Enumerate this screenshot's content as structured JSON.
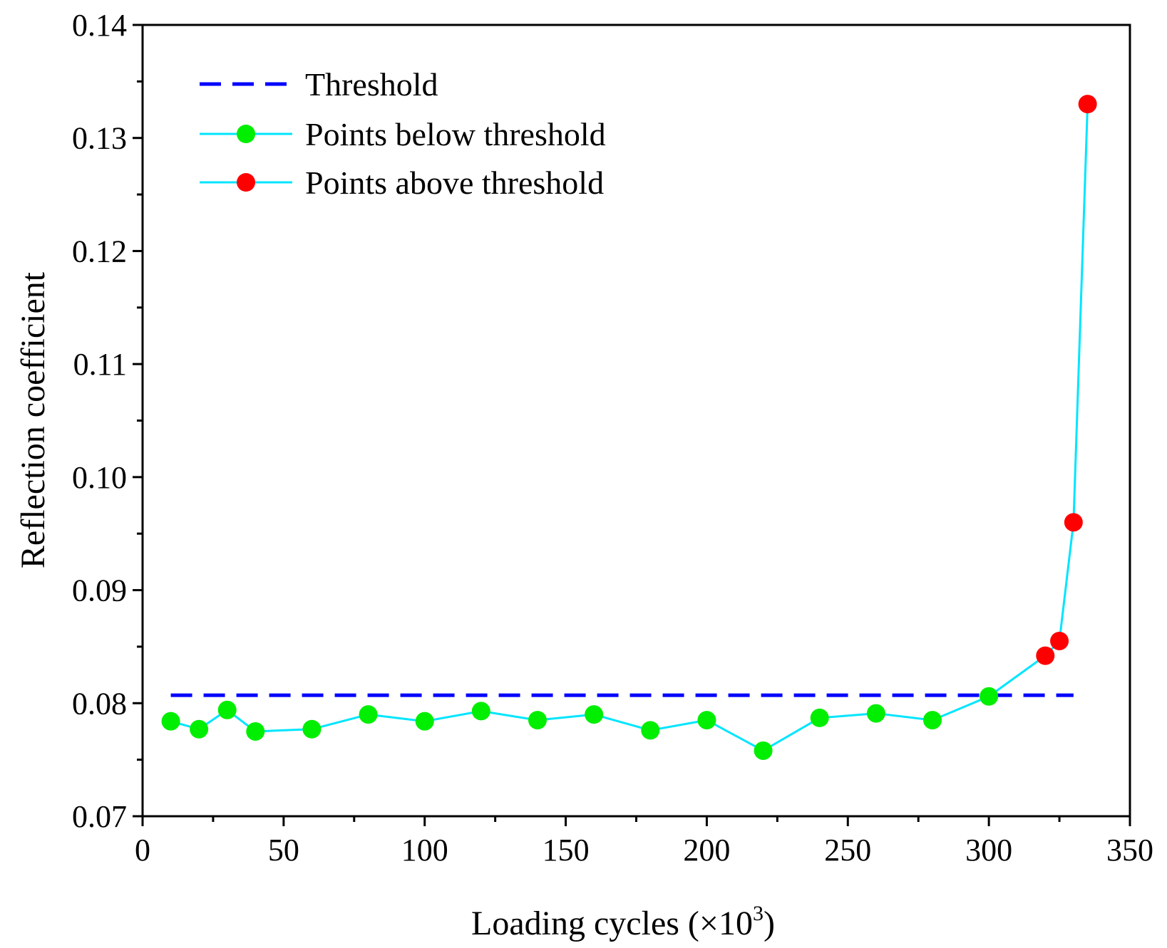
{
  "chart_data": {
    "type": "line",
    "title": "",
    "xlabel_prefix": "Loading cycles (×10",
    "xlabel_exponent": "3",
    "xlabel_suffix": ")",
    "ylabel": "Reflection coefficient",
    "xlim": [
      0,
      350
    ],
    "ylim": [
      0.07,
      0.14
    ],
    "x_ticks": [
      0,
      50,
      100,
      150,
      200,
      250,
      300,
      350
    ],
    "x_tick_labels": [
      "0",
      "50",
      "100",
      "150",
      "200",
      "250",
      "300",
      "350"
    ],
    "y_ticks": [
      0.07,
      0.08,
      0.09,
      0.1,
      0.11,
      0.12,
      0.13,
      0.14
    ],
    "y_tick_labels": [
      "0.07",
      "0.08",
      "0.09",
      "0.10",
      "0.11",
      "0.12",
      "0.13",
      "0.14"
    ],
    "threshold": {
      "name": "Threshold",
      "value": 0.0807,
      "x_range": [
        10,
        330
      ],
      "color": "#0000ff"
    },
    "line_color": "#00e5ff",
    "series": [
      {
        "name": "Points below threshold",
        "color": "#00ee00",
        "x": [
          10,
          20,
          30,
          40,
          60,
          80,
          100,
          120,
          140,
          160,
          180,
          200,
          220,
          240,
          260,
          280,
          300
        ],
        "y": [
          0.0784,
          0.0777,
          0.0794,
          0.0775,
          0.0777,
          0.079,
          0.0784,
          0.0793,
          0.0785,
          0.079,
          0.0776,
          0.0785,
          0.0758,
          0.0787,
          0.0791,
          0.0785,
          0.0806
        ]
      },
      {
        "name": "Points above threshold",
        "color": "#ff0000",
        "x": [
          320,
          325,
          330,
          335
        ],
        "y": [
          0.0842,
          0.0855,
          0.096,
          0.133
        ]
      }
    ],
    "legend": {
      "position": "top-left",
      "entries": [
        "Threshold",
        "Points below threshold",
        "Points above threshold"
      ]
    }
  }
}
